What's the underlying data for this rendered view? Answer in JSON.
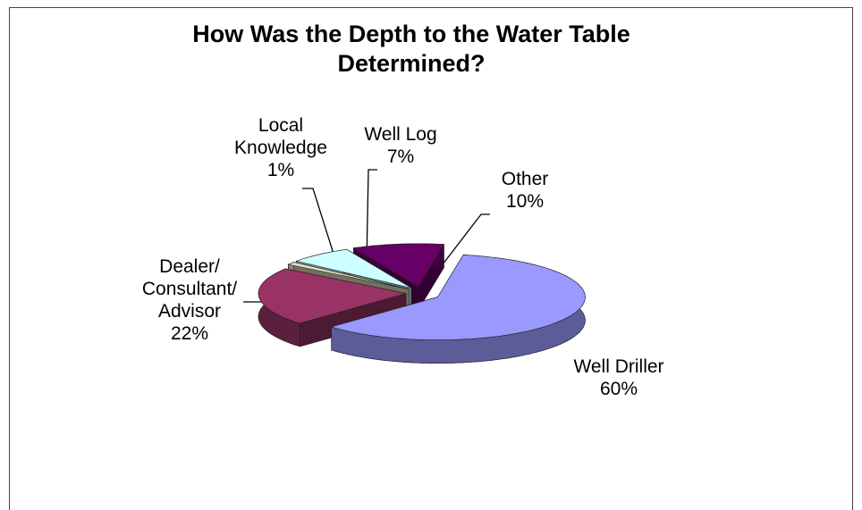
{
  "chart_data": {
    "type": "pie3d",
    "title": "How Was the Depth to the Water Table Determined?",
    "categories": [
      "Well Driller",
      "Dealer/\nConsultant/\nAdvisor",
      "Local\nKnowledge",
      "Well Log",
      "Other"
    ],
    "values": [
      60,
      22,
      1,
      7,
      10
    ],
    "value_labels": [
      "60%",
      "22%",
      "1%",
      "7%",
      "10%"
    ],
    "colors": [
      "#9999ff",
      "#993366",
      "#e6e0c2",
      "#ccffff",
      "#660066"
    ]
  }
}
